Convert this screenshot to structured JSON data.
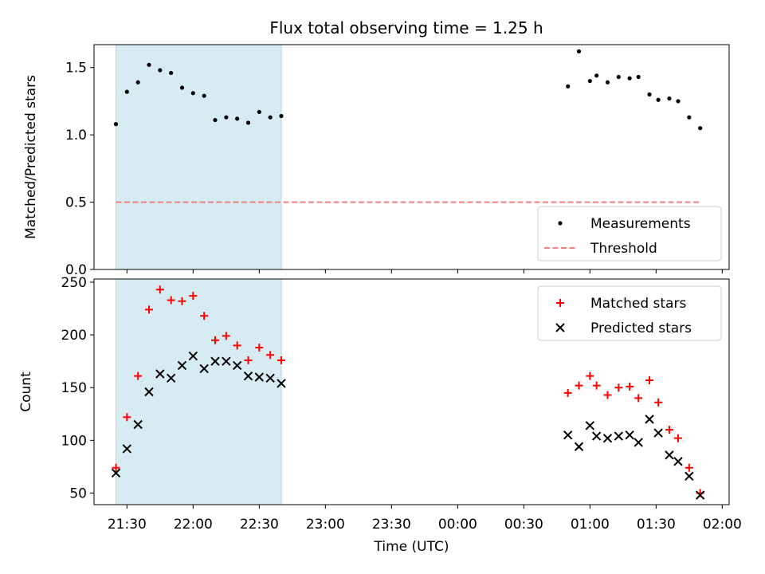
{
  "title": "Flux total observing time = 1.25 h",
  "colors": {
    "shade": "#add8e6",
    "threshold": "#f08080",
    "matched": "#ff0000",
    "predicted": "#000000",
    "measurement": "#000000"
  },
  "chart_data": [
    {
      "type": "scatter",
      "ylabel": "Matched/Predicted stars",
      "ylim": [
        0,
        1.67
      ],
      "yticks": [
        "0.0",
        "0.5",
        "1.0",
        "1.5"
      ],
      "ytick_values": [
        0,
        0.5,
        1.0,
        1.5
      ],
      "x_range": [
        "21:15",
        "02:00"
      ],
      "shaded_interval": [
        "21:25",
        "22:40"
      ],
      "legend_position": "lower right",
      "legend": [
        "Measurements",
        "Threshold"
      ],
      "threshold": {
        "value": 0.5,
        "x": [
          "21:25",
          "01:50"
        ]
      },
      "series": [
        {
          "name": "Measurements",
          "x": [
            "21:25",
            "21:30",
            "21:35",
            "21:40",
            "21:45",
            "21:50",
            "21:55",
            "22:00",
            "22:05",
            "22:10",
            "22:15",
            "22:20",
            "22:25",
            "22:30",
            "22:35",
            "22:40",
            "00:50",
            "00:55",
            "01:00",
            "01:03",
            "01:08",
            "01:13",
            "01:18",
            "01:22",
            "01:27",
            "01:31",
            "01:36",
            "01:40",
            "01:45",
            "01:50"
          ],
          "y": [
            1.08,
            1.32,
            1.39,
            1.52,
            1.48,
            1.46,
            1.35,
            1.31,
            1.29,
            1.11,
            1.13,
            1.12,
            1.09,
            1.17,
            1.13,
            1.14,
            1.36,
            1.62,
            1.4,
            1.44,
            1.39,
            1.43,
            1.42,
            1.43,
            1.3,
            1.26,
            1.27,
            1.25,
            1.13,
            1.05
          ]
        }
      ]
    },
    {
      "type": "scatter",
      "xlabel": "Time (UTC)",
      "ylabel": "Count",
      "ylim": [
        39,
        253
      ],
      "yticks": [
        "50",
        "100",
        "150",
        "200",
        "250"
      ],
      "ytick_values": [
        50,
        100,
        150,
        200,
        250
      ],
      "x_range": [
        "21:15",
        "02:00"
      ],
      "xticks": [
        "21:30",
        "22:00",
        "22:30",
        "23:00",
        "23:30",
        "00:00",
        "00:30",
        "01:00",
        "01:30",
        "02:00"
      ],
      "shaded_interval": [
        "21:25",
        "22:40"
      ],
      "legend_position": "upper right",
      "legend": [
        "Matched stars",
        "Predicted stars"
      ],
      "series": [
        {
          "name": "Matched stars",
          "x": [
            "21:25",
            "21:30",
            "21:35",
            "21:40",
            "21:45",
            "21:50",
            "21:55",
            "22:00",
            "22:05",
            "22:10",
            "22:15",
            "22:20",
            "22:25",
            "22:30",
            "22:35",
            "22:40",
            "00:50",
            "00:55",
            "01:00",
            "01:03",
            "01:08",
            "01:13",
            "01:18",
            "01:22",
            "01:27",
            "01:31",
            "01:36",
            "01:40",
            "01:45",
            "01:50"
          ],
          "y": [
            74,
            122,
            161,
            224,
            243,
            233,
            232,
            237,
            218,
            195,
            199,
            190,
            176,
            188,
            181,
            176,
            145,
            152,
            161,
            152,
            143,
            150,
            151,
            140,
            157,
            136,
            110,
            102,
            74,
            50
          ]
        },
        {
          "name": "Predicted stars",
          "x": [
            "21:25",
            "21:30",
            "21:35",
            "21:40",
            "21:45",
            "21:50",
            "21:55",
            "22:00",
            "22:05",
            "22:10",
            "22:15",
            "22:20",
            "22:25",
            "22:30",
            "22:35",
            "22:40",
            "00:50",
            "00:55",
            "01:00",
            "01:03",
            "01:08",
            "01:13",
            "01:18",
            "01:22",
            "01:27",
            "01:31",
            "01:36",
            "01:40",
            "01:45",
            "01:50"
          ],
          "y": [
            69,
            92,
            115,
            146,
            163,
            159,
            171,
            180,
            168,
            175,
            175,
            171,
            161,
            160,
            159,
            154,
            105,
            94,
            114,
            104,
            102,
            104,
            105,
            98,
            120,
            107,
            86,
            80,
            66,
            48
          ]
        }
      ]
    }
  ]
}
